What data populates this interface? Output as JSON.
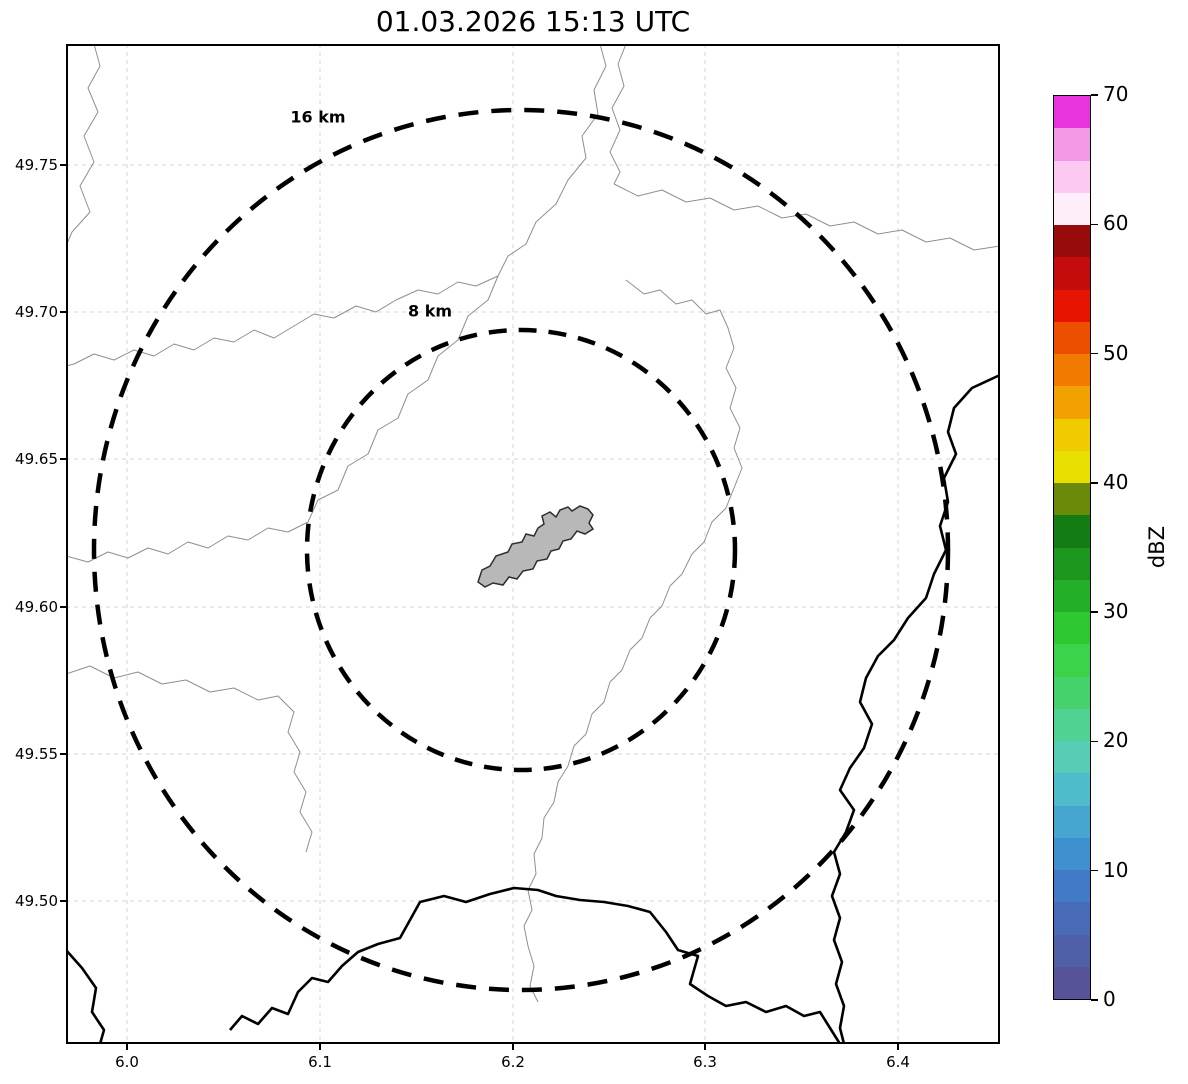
{
  "title": "01.03.2026 15:13 UTC",
  "map": {
    "x_tick_labels": [
      "6.0",
      "6.1",
      "6.2",
      "6.3",
      "6.4"
    ],
    "y_tick_labels": [
      "49.75",
      "49.70",
      "49.65",
      "49.60",
      "49.55",
      "49.50"
    ],
    "ring_labels": {
      "outer": "16 km",
      "inner": "8 km"
    },
    "city_fill_color": "#b8b8b8",
    "national_border_color": "#000000",
    "admin_line_color": "#8f8f8f",
    "ring_color": "#000000"
  },
  "colorbar": {
    "label": "dBZ",
    "tick_labels": [
      "70",
      "60",
      "50",
      "40",
      "30",
      "20",
      "10",
      "0"
    ],
    "band_colors_bottom_to_top": [
      "#565399",
      "#4f5fa8",
      "#486bb7",
      "#417ac6",
      "#3f90cf",
      "#46a6cf",
      "#4fbccb",
      "#57cdb6",
      "#50d292",
      "#46d26a",
      "#3cd24b",
      "#2fc832",
      "#24af28",
      "#1d961d",
      "#137d13",
      "#6a8a0a",
      "#e8de00",
      "#f2ca00",
      "#f2a200",
      "#f27a00",
      "#ed4f00",
      "#e61400",
      "#c40c0c",
      "#970b0b",
      "#fdeef9",
      "#fbc9f1",
      "#f29ae8",
      "#e835dd"
    ]
  },
  "chart_data": {
    "type": "heatmap",
    "title": "01.03.2026 15:13 UTC",
    "xlabel": "",
    "ylabel": "",
    "x_ticks": [
      6.0,
      6.1,
      6.2,
      6.3,
      6.4
    ],
    "x_range": [
      5.968,
      6.453
    ],
    "y_ticks": [
      49.75,
      49.7,
      49.65,
      49.6,
      49.55,
      49.5
    ],
    "y_range": [
      49.452,
      49.791
    ],
    "grid": true,
    "colorbar": {
      "label": "dBZ",
      "min": 0,
      "max": 70,
      "band_step": 2.5,
      "tick_step": 10,
      "position": "right"
    },
    "range_rings_km": [
      8,
      16
    ],
    "ring_center_lonlat": [
      6.204,
      49.62
    ],
    "reflectivity_echoes_visible": false,
    "map_overlays": [
      "thin gray administrative boundary lines",
      "thick black national border along east and south",
      "gray city-area polygon near ring center"
    ]
  }
}
